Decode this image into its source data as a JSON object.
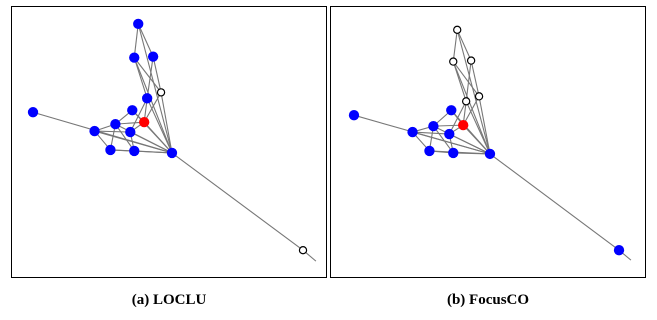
{
  "figure": {
    "colors": {
      "query": "#ff0000",
      "member": "#0000ff",
      "outside": "#ffffff",
      "edge": "#777777",
      "outline": "#000000"
    },
    "panels": [
      {
        "id": "a",
        "caption": "(a) LOCLU",
        "nodes": [
          {
            "id": "top",
            "state": "member"
          },
          {
            "id": "upper-left",
            "state": "member"
          },
          {
            "id": "upper-right",
            "state": "member"
          },
          {
            "id": "mid-high",
            "state": "member"
          },
          {
            "id": "side",
            "state": "outside"
          },
          {
            "id": "mid-left",
            "state": "member"
          },
          {
            "id": "query",
            "state": "query"
          },
          {
            "id": "far-left",
            "state": "member"
          },
          {
            "id": "left-a",
            "state": "member"
          },
          {
            "id": "left-b",
            "state": "member"
          },
          {
            "id": "center",
            "state": "member"
          },
          {
            "id": "bottom-left",
            "state": "member"
          },
          {
            "id": "bottom-mid",
            "state": "member"
          },
          {
            "id": "hub",
            "state": "member"
          },
          {
            "id": "far-right",
            "state": "outside"
          }
        ]
      },
      {
        "id": "b",
        "caption": "(b) FocusCO",
        "nodes": [
          {
            "id": "top",
            "state": "outside"
          },
          {
            "id": "upper-left",
            "state": "outside"
          },
          {
            "id": "upper-right",
            "state": "outside"
          },
          {
            "id": "mid-high",
            "state": "outside"
          },
          {
            "id": "side",
            "state": "outside"
          },
          {
            "id": "mid-left",
            "state": "member"
          },
          {
            "id": "query",
            "state": "query"
          },
          {
            "id": "far-left",
            "state": "member"
          },
          {
            "id": "left-a",
            "state": "member"
          },
          {
            "id": "left-b",
            "state": "member"
          },
          {
            "id": "center",
            "state": "member"
          },
          {
            "id": "bottom-left",
            "state": "member"
          },
          {
            "id": "bottom-mid",
            "state": "member"
          },
          {
            "id": "hub",
            "state": "member"
          },
          {
            "id": "far-right",
            "state": "member"
          }
        ]
      }
    ],
    "edges": [
      [
        "far-left",
        "hub"
      ],
      [
        "hub",
        "far-right"
      ],
      [
        "top",
        "upper-left"
      ],
      [
        "top",
        "upper-right"
      ],
      [
        "top",
        "hub"
      ],
      [
        "upper-left",
        "mid-high"
      ],
      [
        "upper-left",
        "side"
      ],
      [
        "upper-right",
        "side"
      ],
      [
        "upper-right",
        "mid-high"
      ],
      [
        "upper-left",
        "hub"
      ],
      [
        "mid-high",
        "query"
      ],
      [
        "mid-high",
        "center"
      ],
      [
        "mid-high",
        "hub"
      ],
      [
        "side",
        "query"
      ],
      [
        "side",
        "hub"
      ],
      [
        "query",
        "hub"
      ],
      [
        "query",
        "mid-left"
      ],
      [
        "query",
        "left-b"
      ],
      [
        "query",
        "center"
      ],
      [
        "mid-left",
        "left-b"
      ],
      [
        "mid-left",
        "hub"
      ],
      [
        "left-a",
        "left-b"
      ],
      [
        "left-a",
        "bottom-left"
      ],
      [
        "left-a",
        "hub"
      ],
      [
        "left-a",
        "center"
      ],
      [
        "left-b",
        "bottom-left"
      ],
      [
        "left-b",
        "bottom-mid"
      ],
      [
        "left-b",
        "hub"
      ],
      [
        "center",
        "bottom-mid"
      ],
      [
        "center",
        "hub"
      ],
      [
        "bottom-left",
        "bottom-mid"
      ],
      [
        "bottom-left",
        "hub"
      ],
      [
        "bottom-mid",
        "hub"
      ]
    ]
  }
}
